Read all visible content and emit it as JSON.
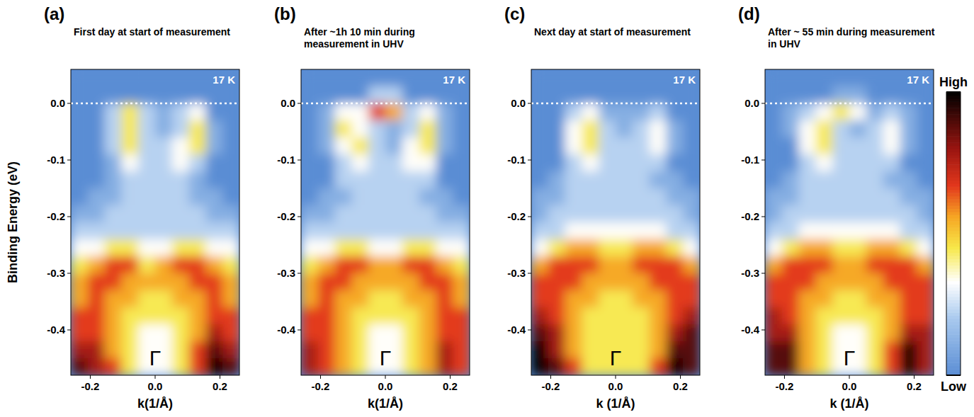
{
  "chart_data": [
    {
      "type": "heatmap",
      "panel": "(a)",
      "title": "First day at start of measurement",
      "annotations": [
        {
          "text": "17 K"
        },
        {
          "text": "Γ",
          "x": 0,
          "y": -0.45
        }
      ],
      "x_label": "k(1/Å)",
      "y_label": "Binding Energy (eV)",
      "xlim": [
        -0.26,
        0.26
      ],
      "ylim": [
        -0.48,
        0.06
      ],
      "hline": 0,
      "xticks": [
        -0.2,
        {
          "value": 0,
          "label": "0.0"
        },
        0.2
      ],
      "yticks": [
        {
          "value": 0,
          "label": "0.0"
        },
        -0.1,
        -0.2,
        -0.3,
        -0.4
      ],
      "x": [
        -0.234,
        -0.182,
        -0.13,
        -0.078,
        -0.026,
        0.026,
        0.078,
        0.13,
        0.182,
        0.234
      ],
      "y": [
        0.045,
        0.015,
        -0.015,
        -0.045,
        -0.075,
        -0.105,
        -0.135,
        -0.165,
        -0.195,
        -0.225,
        -0.255,
        -0.285,
        -0.315,
        -0.345,
        -0.375,
        -0.405,
        -0.435,
        -0.465
      ],
      "values": [
        [
          0,
          0,
          0,
          0,
          0,
          0,
          0,
          0,
          0,
          0
        ],
        [
          0,
          0,
          0,
          0,
          0,
          0,
          0,
          0,
          0,
          0
        ],
        [
          0,
          0,
          2,
          4,
          2,
          1,
          2,
          3,
          0,
          0
        ],
        [
          0,
          0,
          2,
          4,
          2,
          1,
          2,
          4,
          1,
          0
        ],
        [
          0,
          0,
          2,
          4,
          2,
          2,
          3,
          4,
          1,
          0
        ],
        [
          0,
          0,
          1,
          3,
          2,
          2,
          3,
          2,
          0,
          0
        ],
        [
          0,
          0,
          1,
          2,
          2,
          2,
          2,
          1,
          0,
          0
        ],
        [
          0,
          1,
          1,
          2,
          2,
          2,
          2,
          1,
          1,
          0
        ],
        [
          1,
          1,
          2,
          2,
          2,
          2,
          2,
          2,
          1,
          1
        ],
        [
          2,
          2,
          2,
          2,
          2,
          2,
          2,
          2,
          2,
          2
        ],
        [
          3,
          3,
          4,
          4,
          3,
          3,
          4,
          4,
          3,
          3
        ],
        [
          4,
          5,
          6,
          6,
          4,
          5,
          6,
          6,
          5,
          4
        ],
        [
          5,
          6,
          6,
          5,
          5,
          5,
          5,
          6,
          6,
          5
        ],
        [
          5,
          6,
          5,
          5,
          4,
          4,
          5,
          5,
          6,
          5
        ],
        [
          6,
          6,
          5,
          4,
          4,
          4,
          4,
          5,
          6,
          6
        ],
        [
          6,
          6,
          5,
          4,
          3,
          3,
          4,
          5,
          7,
          6
        ],
        [
          7,
          7,
          5,
          4,
          3,
          3,
          4,
          6,
          8,
          7
        ],
        [
          8,
          7,
          6,
          4,
          3,
          3,
          4,
          6,
          9,
          8
        ]
      ]
    },
    {
      "type": "heatmap",
      "panel": "(b)",
      "title": "After ~1h 10 min during measurement in UHV",
      "annotations": [
        {
          "text": "17 K"
        },
        {
          "text": "Γ",
          "x": 0,
          "y": -0.45
        }
      ],
      "x_label": "k(1/Å)",
      "xlim": [
        -0.26,
        0.26
      ],
      "ylim": [
        -0.48,
        0.06
      ],
      "hline": 0,
      "xticks": [
        -0.2,
        {
          "value": 0,
          "label": "0.0"
        },
        0.2
      ],
      "yticks": [
        {
          "value": 0,
          "label": "0.0"
        },
        -0.1,
        -0.2,
        -0.3,
        -0.4
      ],
      "x": [
        -0.234,
        -0.182,
        -0.13,
        -0.078,
        -0.026,
        0.026,
        0.078,
        0.13,
        0.182,
        0.234
      ],
      "y": [
        0.045,
        0.015,
        -0.015,
        -0.045,
        -0.075,
        -0.105,
        -0.135,
        -0.165,
        -0.195,
        -0.225,
        -0.255,
        -0.285,
        -0.315,
        -0.345,
        -0.375,
        -0.405,
        -0.435,
        -0.465
      ],
      "values": [
        [
          0,
          0,
          0,
          0,
          0,
          0,
          0,
          0,
          0,
          0
        ],
        [
          0,
          0,
          0,
          0,
          2,
          2,
          0,
          0,
          0,
          0
        ],
        [
          0,
          1,
          3,
          3,
          6,
          5,
          2,
          3,
          1,
          0
        ],
        [
          0,
          1,
          4,
          3,
          2,
          1,
          2,
          4,
          1,
          0
        ],
        [
          0,
          1,
          3,
          4,
          2,
          1,
          3,
          4,
          1,
          0
        ],
        [
          0,
          0,
          2,
          3,
          2,
          2,
          3,
          3,
          0,
          0
        ],
        [
          0,
          0,
          2,
          2,
          2,
          2,
          2,
          2,
          0,
          0
        ],
        [
          0,
          1,
          1,
          2,
          2,
          2,
          2,
          1,
          1,
          0
        ],
        [
          1,
          1,
          2,
          2,
          2,
          2,
          2,
          2,
          1,
          1
        ],
        [
          2,
          2,
          2,
          2,
          2,
          2,
          2,
          2,
          2,
          2
        ],
        [
          3,
          3,
          4,
          4,
          3,
          3,
          4,
          4,
          3,
          3
        ],
        [
          4,
          5,
          6,
          6,
          5,
          5,
          6,
          6,
          5,
          4
        ],
        [
          5,
          6,
          6,
          5,
          5,
          5,
          5,
          6,
          6,
          5
        ],
        [
          5,
          6,
          5,
          5,
          4,
          4,
          5,
          5,
          6,
          5
        ],
        [
          6,
          6,
          5,
          4,
          4,
          4,
          4,
          5,
          6,
          6
        ],
        [
          6,
          6,
          5,
          4,
          3,
          3,
          4,
          5,
          6,
          6
        ],
        [
          7,
          6,
          5,
          4,
          3,
          3,
          4,
          5,
          7,
          6
        ],
        [
          7,
          6,
          5,
          4,
          3,
          3,
          4,
          5,
          7,
          6
        ]
      ]
    },
    {
      "type": "heatmap",
      "panel": "(c)",
      "title": "Next day at start of measurement",
      "annotations": [
        {
          "text": "17 K"
        },
        {
          "text": "Γ",
          "x": 0,
          "y": -0.45
        }
      ],
      "x_label": "k (1/Å)",
      "xlim": [
        -0.26,
        0.26
      ],
      "ylim": [
        -0.48,
        0.06
      ],
      "hline": 0,
      "xticks": [
        -0.2,
        {
          "value": 0,
          "label": "0.0"
        },
        0.2
      ],
      "yticks": [
        {
          "value": 0,
          "label": "0.0"
        },
        -0.1,
        -0.2,
        -0.3,
        -0.4
      ],
      "x": [
        -0.234,
        -0.182,
        -0.13,
        -0.078,
        -0.026,
        0.026,
        0.078,
        0.13,
        0.182,
        0.234
      ],
      "y": [
        0.045,
        0.015,
        -0.015,
        -0.045,
        -0.075,
        -0.105,
        -0.135,
        -0.165,
        -0.195,
        -0.225,
        -0.255,
        -0.285,
        -0.315,
        -0.345,
        -0.375,
        -0.405,
        -0.435,
        -0.465
      ],
      "values": [
        [
          0,
          0,
          0,
          0,
          0,
          0,
          0,
          0,
          0,
          0
        ],
        [
          0,
          0,
          0,
          0,
          0,
          0,
          0,
          0,
          0,
          0
        ],
        [
          0,
          0,
          2,
          3,
          1,
          1,
          1,
          2,
          0,
          0
        ],
        [
          0,
          0,
          3,
          4,
          2,
          1,
          2,
          3,
          1,
          0
        ],
        [
          0,
          0,
          3,
          4,
          2,
          2,
          2,
          3,
          1,
          0
        ],
        [
          0,
          0,
          2,
          3,
          2,
          2,
          2,
          2,
          0,
          0
        ],
        [
          0,
          1,
          2,
          2,
          2,
          2,
          2,
          1,
          1,
          0
        ],
        [
          1,
          1,
          2,
          2,
          2,
          2,
          2,
          2,
          1,
          1
        ],
        [
          1,
          2,
          2,
          2,
          2,
          2,
          2,
          2,
          2,
          1
        ],
        [
          2,
          2,
          3,
          3,
          3,
          3,
          3,
          3,
          2,
          2
        ],
        [
          3,
          4,
          5,
          5,
          4,
          4,
          5,
          5,
          4,
          3
        ],
        [
          5,
          6,
          6,
          6,
          5,
          5,
          6,
          6,
          6,
          5
        ],
        [
          6,
          6,
          6,
          5,
          5,
          5,
          5,
          6,
          6,
          6
        ],
        [
          6,
          6,
          5,
          5,
          4,
          4,
          5,
          5,
          6,
          6
        ],
        [
          7,
          6,
          5,
          4,
          4,
          4,
          4,
          5,
          6,
          7
        ],
        [
          8,
          7,
          5,
          4,
          4,
          4,
          4,
          5,
          7,
          8
        ],
        [
          9,
          7,
          5,
          4,
          4,
          4,
          4,
          5,
          8,
          8
        ],
        [
          9,
          8,
          6,
          4,
          4,
          4,
          4,
          6,
          9,
          8
        ]
      ]
    },
    {
      "type": "heatmap",
      "panel": "(d)",
      "title": "After ~ 55 min during measurement in UHV",
      "annotations": [
        {
          "text": "17 K"
        },
        {
          "text": "Γ",
          "x": 0,
          "y": -0.45
        }
      ],
      "x_label": "k (1/Å)",
      "xlim": [
        -0.26,
        0.26
      ],
      "ylim": [
        -0.48,
        0.06
      ],
      "hline": 0,
      "xticks": [
        -0.2,
        {
          "value": 0,
          "label": "0.0"
        },
        0.2
      ],
      "yticks": [
        {
          "value": 0,
          "label": "0.0"
        },
        -0.1,
        -0.2,
        -0.3,
        -0.4
      ],
      "x": [
        -0.234,
        -0.182,
        -0.13,
        -0.078,
        -0.026,
        0.026,
        0.078,
        0.13,
        0.182,
        0.234
      ],
      "y": [
        0.045,
        0.015,
        -0.015,
        -0.045,
        -0.075,
        -0.105,
        -0.135,
        -0.165,
        -0.195,
        -0.225,
        -0.255,
        -0.285,
        -0.315,
        -0.345,
        -0.375,
        -0.405,
        -0.435,
        -0.465
      ],
      "values": [
        [
          0,
          0,
          0,
          0,
          0,
          0,
          0,
          0,
          0,
          0
        ],
        [
          0,
          0,
          0,
          0,
          1,
          1,
          0,
          0,
          0,
          0
        ],
        [
          0,
          1,
          2,
          3,
          4,
          3,
          1,
          2,
          1,
          0
        ],
        [
          0,
          1,
          3,
          4,
          2,
          1,
          2,
          3,
          1,
          0
        ],
        [
          0,
          0,
          3,
          4,
          2,
          2,
          2,
          3,
          1,
          0
        ],
        [
          0,
          0,
          2,
          3,
          2,
          2,
          2,
          2,
          0,
          0
        ],
        [
          0,
          1,
          2,
          2,
          2,
          2,
          2,
          1,
          1,
          0
        ],
        [
          1,
          1,
          2,
          2,
          2,
          2,
          2,
          2,
          1,
          1
        ],
        [
          1,
          2,
          2,
          2,
          2,
          2,
          2,
          2,
          2,
          1
        ],
        [
          2,
          2,
          3,
          3,
          3,
          3,
          3,
          3,
          2,
          2
        ],
        [
          3,
          4,
          5,
          5,
          4,
          4,
          5,
          5,
          4,
          3
        ],
        [
          5,
          6,
          6,
          6,
          5,
          5,
          6,
          6,
          6,
          5
        ],
        [
          6,
          6,
          6,
          5,
          5,
          5,
          5,
          6,
          6,
          6
        ],
        [
          6,
          6,
          5,
          5,
          4,
          4,
          5,
          5,
          6,
          6
        ],
        [
          7,
          6,
          5,
          4,
          4,
          4,
          4,
          5,
          6,
          6
        ],
        [
          7,
          7,
          5,
          4,
          3,
          3,
          4,
          5,
          7,
          7
        ],
        [
          8,
          8,
          5,
          4,
          3,
          3,
          4,
          6,
          9,
          7
        ],
        [
          8,
          8,
          5,
          4,
          3,
          3,
          4,
          6,
          9,
          7
        ]
      ],
      "colorbar": {
        "lim": [
          0,
          9
        ],
        "ticks": [
          {
            "value": 9,
            "label": "High"
          },
          {
            "value": 0,
            "label": "Low"
          }
        ]
      }
    }
  ]
}
